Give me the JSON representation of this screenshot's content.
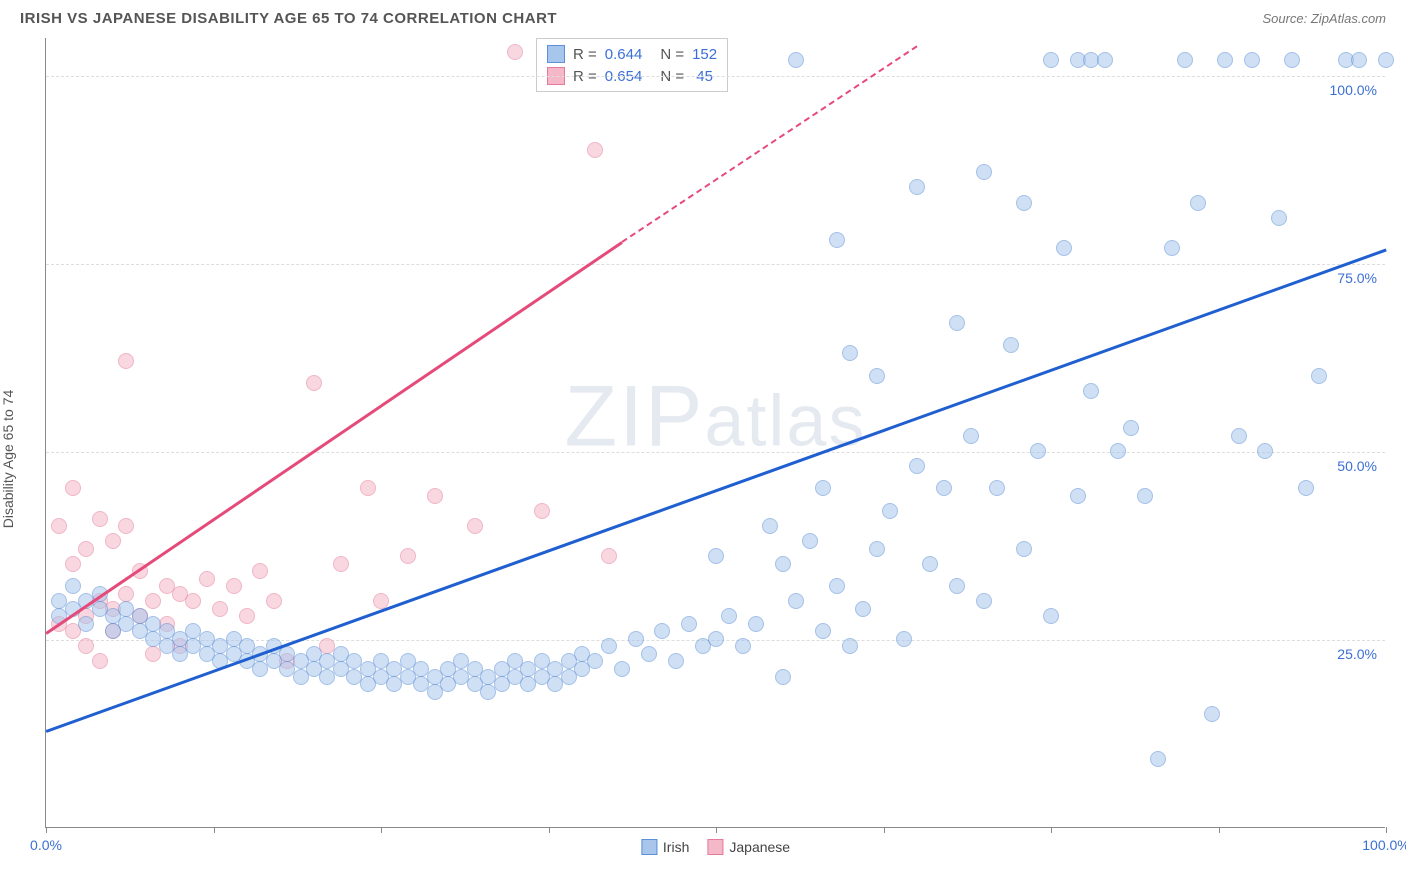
{
  "header": {
    "title": "IRISH VS JAPANESE DISABILITY AGE 65 TO 74 CORRELATION CHART",
    "source": "Source: ZipAtlas.com"
  },
  "ylabel": "Disability Age 65 to 74",
  "watermark": "ZIPatlas",
  "chart": {
    "type": "scatter",
    "xlim": [
      0,
      100
    ],
    "ylim": [
      0,
      105
    ],
    "xticks": [
      0,
      12.5,
      25,
      37.5,
      50,
      62.5,
      75,
      87.5,
      100
    ],
    "xtick_labels": {
      "0": "0.0%",
      "100": "100.0%"
    },
    "yticks": [
      25,
      50,
      75,
      100
    ],
    "ytick_labels": [
      "25.0%",
      "50.0%",
      "75.0%",
      "100.0%"
    ],
    "grid_color": "#dddddd",
    "axis_color": "#888888",
    "background": "#ffffff",
    "marker_radius": 8,
    "marker_opacity": 0.55,
    "series": {
      "irish": {
        "label": "Irish",
        "fill": "#a8c5ec",
        "stroke": "#5b8fd6",
        "line_color": "#1f5fd0",
        "R": "0.644",
        "N": "152",
        "trend": {
          "x1": 0,
          "y1": 13,
          "x2": 100,
          "y2": 77
        },
        "points": [
          [
            1,
            30
          ],
          [
            1,
            28
          ],
          [
            2,
            32
          ],
          [
            2,
            29
          ],
          [
            3,
            30
          ],
          [
            3,
            27
          ],
          [
            4,
            31
          ],
          [
            4,
            29
          ],
          [
            5,
            28
          ],
          [
            5,
            26
          ],
          [
            6,
            27
          ],
          [
            6,
            29
          ],
          [
            7,
            28
          ],
          [
            7,
            26
          ],
          [
            8,
            27
          ],
          [
            8,
            25
          ],
          [
            9,
            26
          ],
          [
            9,
            24
          ],
          [
            10,
            25
          ],
          [
            10,
            23
          ],
          [
            11,
            26
          ],
          [
            11,
            24
          ],
          [
            12,
            25
          ],
          [
            12,
            23
          ],
          [
            13,
            24
          ],
          [
            13,
            22
          ],
          [
            14,
            23
          ],
          [
            14,
            25
          ],
          [
            15,
            22
          ],
          [
            15,
            24
          ],
          [
            16,
            23
          ],
          [
            16,
            21
          ],
          [
            17,
            22
          ],
          [
            17,
            24
          ],
          [
            18,
            21
          ],
          [
            18,
            23
          ],
          [
            19,
            22
          ],
          [
            19,
            20
          ],
          [
            20,
            21
          ],
          [
            20,
            23
          ],
          [
            21,
            20
          ],
          [
            21,
            22
          ],
          [
            22,
            23
          ],
          [
            22,
            21
          ],
          [
            23,
            20
          ],
          [
            23,
            22
          ],
          [
            24,
            21
          ],
          [
            24,
            19
          ],
          [
            25,
            22
          ],
          [
            25,
            20
          ],
          [
            26,
            21
          ],
          [
            26,
            19
          ],
          [
            27,
            20
          ],
          [
            27,
            22
          ],
          [
            28,
            19
          ],
          [
            28,
            21
          ],
          [
            29,
            20
          ],
          [
            29,
            18
          ],
          [
            30,
            21
          ],
          [
            30,
            19
          ],
          [
            31,
            20
          ],
          [
            31,
            22
          ],
          [
            32,
            19
          ],
          [
            32,
            21
          ],
          [
            33,
            20
          ],
          [
            33,
            18
          ],
          [
            34,
            21
          ],
          [
            34,
            19
          ],
          [
            35,
            20
          ],
          [
            35,
            22
          ],
          [
            36,
            19
          ],
          [
            36,
            21
          ],
          [
            37,
            20
          ],
          [
            37,
            22
          ],
          [
            38,
            19
          ],
          [
            38,
            21
          ],
          [
            39,
            22
          ],
          [
            39,
            20
          ],
          [
            40,
            23
          ],
          [
            40,
            21
          ],
          [
            41,
            22
          ],
          [
            42,
            24
          ],
          [
            43,
            21
          ],
          [
            44,
            25
          ],
          [
            45,
            23
          ],
          [
            46,
            26
          ],
          [
            47,
            22
          ],
          [
            48,
            27
          ],
          [
            49,
            24
          ],
          [
            50,
            25
          ],
          [
            50,
            36
          ],
          [
            51,
            28
          ],
          [
            52,
            24
          ],
          [
            53,
            27
          ],
          [
            54,
            40
          ],
          [
            55,
            20
          ],
          [
            55,
            35
          ],
          [
            56,
            30
          ],
          [
            57,
            38
          ],
          [
            58,
            26
          ],
          [
            58,
            45
          ],
          [
            59,
            32
          ],
          [
            60,
            24
          ],
          [
            60,
            63
          ],
          [
            61,
            29
          ],
          [
            62,
            37
          ],
          [
            62,
            60
          ],
          [
            63,
            42
          ],
          [
            64,
            25
          ],
          [
            65,
            48
          ],
          [
            65,
            85
          ],
          [
            66,
            35
          ],
          [
            67,
            45
          ],
          [
            68,
            32
          ],
          [
            68,
            67
          ],
          [
            69,
            52
          ],
          [
            70,
            30
          ],
          [
            70,
            87
          ],
          [
            71,
            45
          ],
          [
            72,
            64
          ],
          [
            73,
            37
          ],
          [
            73,
            83
          ],
          [
            74,
            50
          ],
          [
            75,
            102
          ],
          [
            75,
            28
          ],
          [
            76,
            77
          ],
          [
            77,
            44
          ],
          [
            77,
            102
          ],
          [
            78,
            58
          ],
          [
            78,
            102
          ],
          [
            79,
            102
          ],
          [
            80,
            50
          ],
          [
            81,
            53
          ],
          [
            82,
            44
          ],
          [
            83,
            9
          ],
          [
            84,
            77
          ],
          [
            85,
            102
          ],
          [
            86,
            83
          ],
          [
            87,
            15
          ],
          [
            88,
            102
          ],
          [
            89,
            52
          ],
          [
            90,
            102
          ],
          [
            91,
            50
          ],
          [
            92,
            81
          ],
          [
            93,
            102
          ],
          [
            94,
            45
          ],
          [
            95,
            60
          ],
          [
            97,
            102
          ],
          [
            98,
            102
          ],
          [
            100,
            102
          ],
          [
            56,
            102
          ],
          [
            59,
            78
          ]
        ]
      },
      "japanese": {
        "label": "Japanese",
        "fill": "#f5b8c8",
        "stroke": "#e57a9a",
        "line_color": "#e54b7a",
        "R": "0.654",
        "N": "45",
        "trend_solid": {
          "x1": 0,
          "y1": 26,
          "x2": 43,
          "y2": 78
        },
        "trend_dash": {
          "x1": 43,
          "y1": 78,
          "x2": 65,
          "y2": 104
        },
        "points": [
          [
            1,
            27
          ],
          [
            1,
            40
          ],
          [
            2,
            26
          ],
          [
            2,
            35
          ],
          [
            2,
            45
          ],
          [
            3,
            28
          ],
          [
            3,
            37
          ],
          [
            3,
            24
          ],
          [
            4,
            30
          ],
          [
            4,
            41
          ],
          [
            4,
            22
          ],
          [
            5,
            29
          ],
          [
            5,
            38
          ],
          [
            5,
            26
          ],
          [
            6,
            31
          ],
          [
            6,
            40
          ],
          [
            6,
            62
          ],
          [
            7,
            28
          ],
          [
            7,
            34
          ],
          [
            8,
            30
          ],
          [
            8,
            23
          ],
          [
            9,
            32
          ],
          [
            9,
            27
          ],
          [
            10,
            31
          ],
          [
            10,
            24
          ],
          [
            11,
            30
          ],
          [
            12,
            33
          ],
          [
            13,
            29
          ],
          [
            14,
            32
          ],
          [
            15,
            28
          ],
          [
            16,
            34
          ],
          [
            17,
            30
          ],
          [
            18,
            22
          ],
          [
            20,
            59
          ],
          [
            21,
            24
          ],
          [
            22,
            35
          ],
          [
            24,
            45
          ],
          [
            25,
            30
          ],
          [
            27,
            36
          ],
          [
            29,
            44
          ],
          [
            32,
            40
          ],
          [
            35,
            103
          ],
          [
            37,
            42
          ],
          [
            41,
            90
          ],
          [
            42,
            36
          ]
        ]
      }
    }
  },
  "legend_top": {
    "rows": [
      {
        "sw_fill": "#a8c5ec",
        "sw_stroke": "#5b8fd6",
        "r_label": "R =",
        "r_val": "0.644",
        "n_label": "N =",
        "n_val": "152"
      },
      {
        "sw_fill": "#f5b8c8",
        "sw_stroke": "#e57a9a",
        "r_label": "R =",
        "r_val": "0.654",
        "n_label": "N =",
        "n_val": " 45"
      }
    ]
  },
  "legend_bottom": [
    {
      "sw_fill": "#a8c5ec",
      "sw_stroke": "#5b8fd6",
      "label": "Irish"
    },
    {
      "sw_fill": "#f5b8c8",
      "sw_stroke": "#e57a9a",
      "label": "Japanese"
    }
  ]
}
